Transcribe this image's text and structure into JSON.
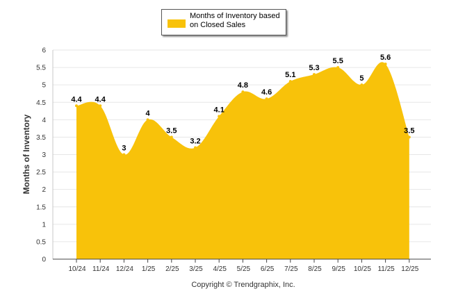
{
  "colors": {
    "series_fill": "#F8C20A",
    "grid": "#e6e6e6",
    "axis": "#444444",
    "text": "#000000"
  },
  "footer": {
    "copyright": "Copyright © Trendgraphix, Inc."
  },
  "chart_data": {
    "type": "area",
    "categories": [
      "10/24",
      "11/24",
      "12/24",
      "1/25",
      "2/25",
      "3/25",
      "4/25",
      "5/25",
      "6/25",
      "7/25",
      "8/25",
      "9/25",
      "10/25",
      "11/25",
      "12/25"
    ],
    "series": [
      {
        "name": "Months of Inventory based on Closed Sales",
        "values": [
          4.4,
          4.4,
          3,
          4,
          3.5,
          3.2,
          4.1,
          4.8,
          4.6,
          5.1,
          5.3,
          5.5,
          5,
          5.6,
          3.5
        ]
      }
    ],
    "data_labels": [
      "4.4",
      "4.4",
      "3",
      "4",
      "3.5",
      "3.2",
      "4.1",
      "4.8",
      "4.6",
      "5.1",
      "5.3",
      "5.5",
      "5",
      "5.6",
      "3.5"
    ],
    "ylabel": "Months of Inventory",
    "xlabel": "",
    "ylim": [
      0,
      6
    ],
    "yticks": [
      "0",
      "0.5",
      "1",
      "1.5",
      "2",
      "2.5",
      "3",
      "3.5",
      "4",
      "4.5",
      "5",
      "5.5",
      "6"
    ],
    "grid": true,
    "legend_position": "top-center"
  }
}
